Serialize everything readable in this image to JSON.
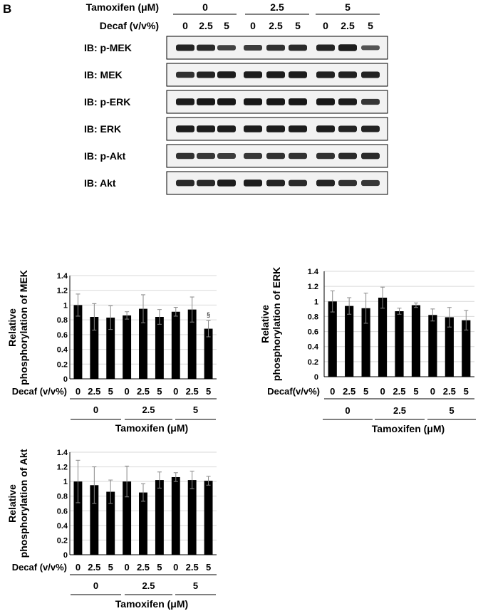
{
  "panel_label": "B",
  "blot": {
    "tamoxifen_label": "Tamoxifen (μM)",
    "decaf_label": "Decaf (v/v%)",
    "tamoxifen_groups": [
      "0",
      "2.5",
      "5"
    ],
    "decaf_levels": [
      "0",
      "2.5",
      "5",
      "0",
      "2.5",
      "5",
      "0",
      "2.5",
      "5"
    ],
    "rows": [
      {
        "label": "IB: p-MEK",
        "intensities": [
          0.85,
          0.8,
          0.6,
          0.65,
          0.75,
          0.8,
          0.85,
          0.9,
          0.45
        ]
      },
      {
        "label": "IB: MEK",
        "intensities": [
          0.75,
          0.85,
          0.9,
          0.9,
          0.9,
          0.9,
          0.88,
          0.88,
          0.85
        ]
      },
      {
        "label": "IB: p-ERK",
        "intensities": [
          0.9,
          0.95,
          0.95,
          0.95,
          0.95,
          0.95,
          0.95,
          0.9,
          0.7
        ]
      },
      {
        "label": "IB: ERK",
        "intensities": [
          0.9,
          0.9,
          0.9,
          0.9,
          0.9,
          0.9,
          0.9,
          0.85,
          0.85
        ]
      },
      {
        "label": "IB: p-Akt",
        "intensities": [
          0.75,
          0.7,
          0.65,
          0.7,
          0.75,
          0.75,
          0.75,
          0.8,
          0.8
        ]
      },
      {
        "label": "IB: Akt",
        "intensities": [
          0.8,
          0.8,
          0.9,
          0.9,
          0.85,
          0.8,
          0.85,
          0.75,
          0.7
        ]
      }
    ]
  },
  "chart_data": [
    {
      "type": "bar",
      "ylabel": "Relative phosphorylation of MEK",
      "ylim": [
        0,
        1.4
      ],
      "yticks": [
        "0",
        "0.2",
        "0.4",
        "0.6",
        "0.8",
        "1",
        "1.2",
        "1.4"
      ],
      "grid": true,
      "categories": [
        "0",
        "2.5",
        "5",
        "0",
        "2.5",
        "5",
        "0",
        "2.5",
        "5"
      ],
      "row_label": "Decaf (v/v%)",
      "groups": [
        "0",
        "2.5",
        "5"
      ],
      "group_title": "Tamoxifen (μM)",
      "values": [
        1.0,
        0.84,
        0.83,
        0.86,
        0.95,
        0.84,
        0.91,
        0.94,
        0.68
      ],
      "errors": [
        0.15,
        0.18,
        0.16,
        0.05,
        0.19,
        0.1,
        0.06,
        0.17,
        0.11
      ],
      "annotations": [
        {
          "index": 8,
          "text": "§"
        }
      ]
    },
    {
      "type": "bar",
      "ylabel": "Relative phosphorylation of ERK",
      "ylim": [
        0,
        1.4
      ],
      "yticks": [
        "0",
        "0.2",
        "0.4",
        "0.6",
        "0.8",
        "1",
        "1.2",
        "1.4"
      ],
      "grid": true,
      "categories": [
        "0",
        "2.5",
        "5",
        "0",
        "2.5",
        "5",
        "0",
        "2.5",
        "5"
      ],
      "row_label": "Decaf(v/v%)",
      "groups": [
        "0",
        "2.5",
        "5"
      ],
      "group_title": "Tamoxifen (μM)",
      "values": [
        1.0,
        0.94,
        0.91,
        1.05,
        0.87,
        0.95,
        0.82,
        0.79,
        0.75
      ],
      "errors": [
        0.14,
        0.11,
        0.2,
        0.14,
        0.04,
        0.03,
        0.08,
        0.13,
        0.13
      ],
      "annotations": []
    },
    {
      "type": "bar",
      "ylabel": "Relative phosphorylation of Akt",
      "ylim": [
        0,
        1.4
      ],
      "yticks": [
        "0",
        "0.2",
        "0.4",
        "0.6",
        "0.8",
        "1",
        "1.2",
        "1.4"
      ],
      "grid": true,
      "categories": [
        "0",
        "2.5",
        "5",
        "0",
        "2.5",
        "5",
        "0",
        "2.5",
        "5"
      ],
      "row_label": "Decaf (v/v%)",
      "groups": [
        "0",
        "2.5",
        "5"
      ],
      "group_title": "Tamoxifen (μM)",
      "values": [
        1.0,
        0.95,
        0.86,
        1.0,
        0.85,
        1.02,
        1.06,
        1.02,
        1.01
      ],
      "errors": [
        0.29,
        0.25,
        0.16,
        0.21,
        0.12,
        0.11,
        0.06,
        0.12,
        0.06
      ],
      "annotations": []
    }
  ]
}
